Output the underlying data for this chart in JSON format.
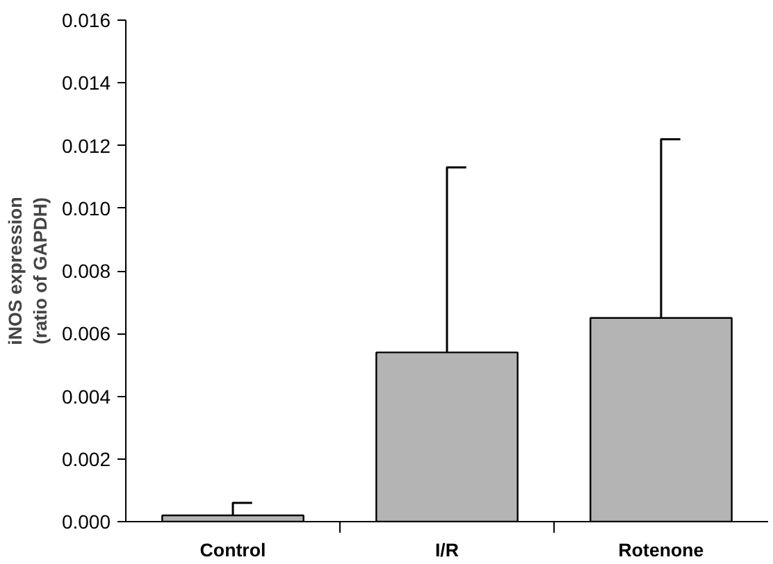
{
  "chart_data": {
    "type": "bar",
    "ylabel": "iNOS expression\n(ratio of GAPDH)",
    "categories": [
      "Control",
      "I/R",
      "Rotenone"
    ],
    "values": [
      0.0002,
      0.0054,
      0.0065
    ],
    "errors": [
      [
        0.0002,
        0.0006
      ],
      [
        0.0054,
        0.0113
      ],
      [
        0.0065,
        0.0122
      ]
    ],
    "color": "#b4b4b4",
    "ylim": [
      0,
      0.016
    ],
    "yticks": [
      {
        "value": 0,
        "label": "0.000"
      },
      {
        "value": 0.002,
        "label": "0.002"
      },
      {
        "value": 0.004,
        "label": "0.004"
      },
      {
        "value": 0.006,
        "label": "0.006"
      },
      {
        "value": 0.008,
        "label": "0.008"
      },
      {
        "value": 0.01,
        "label": "0.010"
      },
      {
        "value": 0.012,
        "label": "0.012"
      },
      {
        "value": 0.014,
        "label": "0.014"
      },
      {
        "value": 0.016,
        "label": "0.016"
      }
    ],
    "grid": false
  }
}
